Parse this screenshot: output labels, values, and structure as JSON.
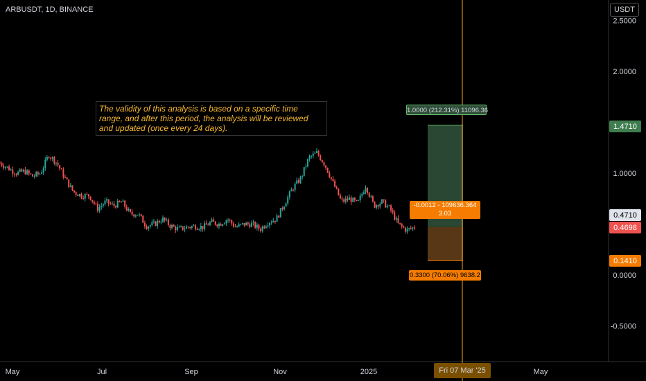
{
  "header": {
    "symbol": "ARBUSDT, 1D, BINANCE",
    "currency": "USDT"
  },
  "note": "The validity of this analysis is based on a specific time range, and after this period, the analysis will be reviewed and updated (once every 24 days).",
  "position": {
    "target_label": "1.0000 (212.31%) 11096.36",
    "entry_label_line1": "-0.0012 - 109636.364",
    "entry_label_line2": "3.03",
    "stop_label": "0.3300 (70.06%) 9638.2",
    "target_price": "1.4710",
    "entry_price": "0.4710",
    "current_price": "0.4698",
    "stop_price": "0.1410",
    "target_color": "#2f4f3a",
    "stop_color": "#5c3a16",
    "accent_orange": "#f57c00"
  },
  "cursor": {
    "date": "Fri 07 Mar '25"
  },
  "chart_data": {
    "type": "candlestick",
    "y_ticks": [
      "2.5000",
      "2.0000",
      "1.0000",
      "0.0000",
      "-0.5000"
    ],
    "x_ticks": [
      "May",
      "Jul",
      "Sep",
      "Nov",
      "2025",
      "May"
    ],
    "colors": {
      "up": "#26a69a",
      "down": "#ef5350",
      "cursor": "#f5a623"
    },
    "close_path": [
      1.1,
      1.05,
      1.0,
      1.02,
      0.97,
      1.0,
      1.18,
      1.1,
      0.95,
      0.82,
      0.78,
      0.78,
      0.65,
      0.72,
      0.68,
      0.72,
      0.6,
      0.6,
      0.48,
      0.5,
      0.55,
      0.48,
      0.45,
      0.47,
      0.48,
      0.47,
      0.52,
      0.5,
      0.55,
      0.47,
      0.5,
      0.5,
      0.45,
      0.52,
      0.55,
      0.7,
      0.85,
      0.95,
      1.15,
      1.2,
      1.08,
      0.9,
      0.72,
      0.75,
      0.7,
      0.88,
      0.68,
      0.72,
      0.65,
      0.5,
      0.44,
      0.47
    ]
  }
}
